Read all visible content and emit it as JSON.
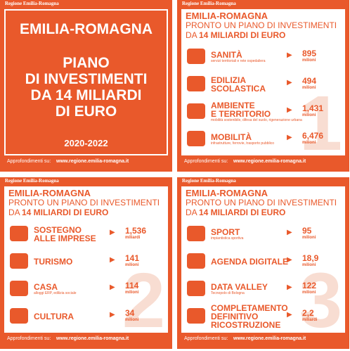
{
  "logo": "Regione Emilia-Romagna",
  "cover": {
    "title": "EMILIA-ROMAGNA",
    "headline": [
      "PIANO",
      "DI INVESTIMENTI",
      "DA 14 MILIARDI",
      "DI EURO"
    ],
    "years": "2020-2022"
  },
  "footer": {
    "label": "Approfondimenti su:",
    "url": "www.regione.emilia-romagna.it"
  },
  "header": {
    "title": "EMILIA-ROMAGNA",
    "line1": "PRONTO UN PIANO DI INVESTIMENTI",
    "line2a": "DA",
    "line2b": "14 MILIARDI DI EURO"
  },
  "panels": [
    {
      "page": "1",
      "items": [
        {
          "label": [
            "SANITÀ"
          ],
          "note": "servizi territoriali e rete ospedaliera",
          "value": "895",
          "unit": "milioni"
        },
        {
          "label": [
            "EDILIZIA",
            "SCOLASTICA"
          ],
          "value": "494",
          "unit": "milioni"
        },
        {
          "label": [
            "AMBIENTE",
            "E TERRITORIO"
          ],
          "note": "mobilità sostenibile, difesa del suolo, rigenerazione urbana",
          "value": "1,431",
          "unit": "milioni"
        },
        {
          "label": [
            "MOBILITÀ"
          ],
          "note": "infrastrutture, ferrovie, trasporto pubblico",
          "value": "6,476",
          "unit": "milioni"
        }
      ]
    },
    {
      "page": "2",
      "items": [
        {
          "label": [
            "SOSTEGNO",
            "ALLE IMPRESE"
          ],
          "value": "1,536",
          "unit": "miliardi"
        },
        {
          "label": [
            "TURISMO"
          ],
          "value": "141",
          "unit": "milioni"
        },
        {
          "label": [
            "CASA"
          ],
          "note": "alloggi ERP, edilizia sociale",
          "value": "114",
          "unit": "milioni"
        },
        {
          "label": [
            "CULTURA"
          ],
          "value": "34",
          "unit": "milioni"
        }
      ]
    },
    {
      "page": "3",
      "items": [
        {
          "label": [
            "SPORT"
          ],
          "note": "impiantistica sportiva",
          "value": "95",
          "unit": "milioni"
        },
        {
          "label": [
            "AGENDA DIGITALE"
          ],
          "value": "18,9",
          "unit": "milioni"
        },
        {
          "label": [
            "DATA VALLEY"
          ],
          "note": "Tecnopolo di Bologna",
          "value": "122",
          "unit": "milioni"
        },
        {
          "label": [
            "COMPLETAMENTO",
            "DEFINITIVO",
            "RICOSTRUZIONE"
          ],
          "value": "2,2",
          "unit": "miliardi"
        }
      ]
    }
  ]
}
